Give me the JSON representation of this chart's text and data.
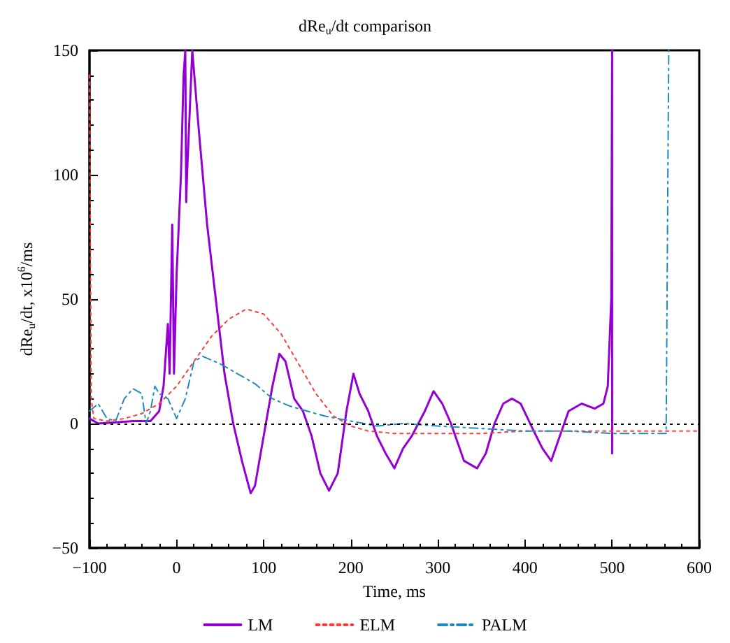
{
  "chart_data": {
    "type": "line",
    "title": "dRe$_{u}$/dt comparison",
    "xlabel": "Time, ms",
    "ylabel": "dRe$_{u}$/dt, x10$^{6}$/ms",
    "xlim": [
      -100,
      600
    ],
    "ylim": [
      -50,
      150
    ],
    "xticks": [
      -100,
      0,
      100,
      200,
      300,
      400,
      500,
      600
    ],
    "yticks": [
      -50,
      0,
      50,
      100,
      150
    ],
    "grid": false,
    "legend": "bottom",
    "marker": "none",
    "ref_lines": [
      {
        "axis": "y",
        "value": 0,
        "label": null,
        "color": "#000000",
        "line_style": "dotted"
      }
    ],
    "series": [
      {
        "name": "LM",
        "color": "#9400d3",
        "line_style": "solid",
        "x": [
          -100,
          -90,
          -50,
          -30,
          -20,
          -15,
          -10,
          -8,
          -5,
          -3,
          0,
          5,
          8,
          10,
          11,
          12,
          18,
          25,
          35,
          45,
          55,
          65,
          75,
          85,
          90,
          100,
          110,
          118,
          125,
          135,
          145,
          155,
          165,
          175,
          185,
          195,
          203,
          210,
          220,
          230,
          240,
          250,
          260,
          270,
          285,
          295,
          305,
          315,
          330,
          345,
          355,
          365,
          375,
          385,
          395,
          410,
          420,
          430,
          440,
          450,
          465,
          480,
          490,
          495,
          499,
          500,
          500
        ],
        "values": [
          2,
          0,
          1,
          1,
          5,
          15,
          40,
          20,
          80,
          20,
          60,
          100,
          140,
          150,
          89,
          100,
          150,
          120,
          80,
          50,
          20,
          0,
          -15,
          -28,
          -25,
          -5,
          15,
          28,
          25,
          10,
          5,
          -5,
          -20,
          -27,
          -20,
          5,
          20,
          12,
          5,
          -5,
          -12,
          -18,
          -10,
          -5,
          5,
          13,
          8,
          0,
          -15,
          -18,
          -12,
          0,
          8,
          10,
          8,
          -3,
          -10,
          -15,
          -5,
          5,
          8,
          6,
          8,
          15,
          50,
          150,
          -12
        ]
      },
      {
        "name": "ELM",
        "color": "#ff3b3b",
        "line_style": "dotted",
        "x": [
          -100,
          -98,
          -95,
          -80,
          -60,
          -40,
          -20,
          0,
          20,
          40,
          60,
          80,
          100,
          120,
          140,
          160,
          180,
          200,
          220,
          250,
          300,
          350,
          400,
          450,
          500,
          600
        ],
        "values": [
          140,
          10,
          2,
          1,
          2,
          4,
          8,
          15,
          25,
          35,
          42,
          46,
          44,
          36,
          24,
          12,
          3,
          -1,
          -3,
          -4,
          -4,
          -4,
          -3,
          -3,
          -3,
          -3
        ]
      },
      {
        "name": "PALM",
        "color": "#1f8ac0",
        "line_style": "dashed",
        "x": [
          -100,
          -90,
          -80,
          -70,
          -60,
          -50,
          -40,
          -35,
          -30,
          -25,
          -20,
          -10,
          0,
          10,
          20,
          30,
          50,
          70,
          90,
          110,
          130,
          150,
          170,
          200,
          230,
          260,
          300,
          350,
          400,
          450,
          500,
          550,
          562,
          565
        ],
        "values": [
          5,
          8,
          2,
          1,
          10,
          14,
          12,
          0,
          5,
          15,
          12,
          10,
          2,
          10,
          25,
          27,
          24,
          20,
          16,
          10,
          7,
          5,
          3,
          1,
          -1,
          0,
          -1,
          -2,
          -3,
          -3,
          -4,
          -4,
          -4,
          150
        ]
      }
    ]
  }
}
